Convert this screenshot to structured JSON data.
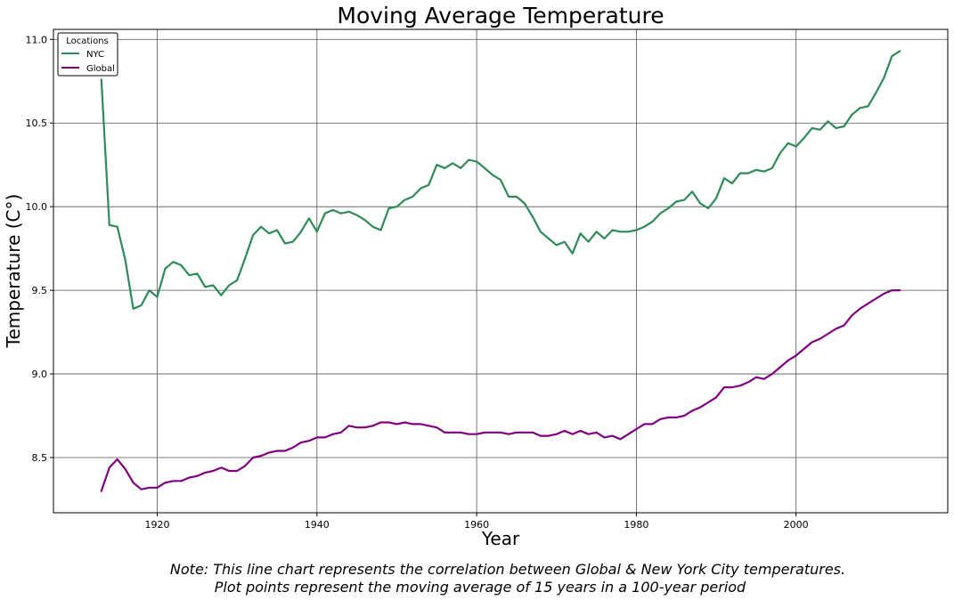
{
  "chart_data": {
    "type": "line",
    "title": "Moving Average Temperature",
    "xlabel": "Year",
    "ylabel": "Temperature (C°)",
    "xlim": [
      1907,
      2019
    ],
    "ylim": [
      8.17,
      11.06
    ],
    "xticks": [
      1920,
      1940,
      1960,
      1980,
      2000
    ],
    "yticks": [
      8.5,
      9.0,
      9.5,
      10.0,
      10.5,
      11.0
    ],
    "grid": true,
    "legend": {
      "title": "Locations",
      "placement": "top-left"
    },
    "x": [
      1913,
      1914,
      1915,
      1916,
      1917,
      1918,
      1919,
      1920,
      1921,
      1922,
      1923,
      1924,
      1925,
      1926,
      1927,
      1928,
      1929,
      1930,
      1931,
      1932,
      1933,
      1934,
      1935,
      1936,
      1937,
      1938,
      1939,
      1940,
      1941,
      1942,
      1943,
      1944,
      1945,
      1946,
      1947,
      1948,
      1949,
      1950,
      1951,
      1952,
      1953,
      1954,
      1955,
      1956,
      1957,
      1958,
      1959,
      1960,
      1961,
      1962,
      1963,
      1964,
      1965,
      1966,
      1967,
      1968,
      1969,
      1970,
      1971,
      1972,
      1973,
      1974,
      1975,
      1976,
      1977,
      1978,
      1979,
      1980,
      1981,
      1982,
      1983,
      1984,
      1985,
      1986,
      1987,
      1988,
      1989,
      1990,
      1991,
      1992,
      1993,
      1994,
      1995,
      1996,
      1997,
      1998,
      1999,
      2000,
      2001,
      2002,
      2003,
      2004,
      2005,
      2006,
      2007,
      2008,
      2009,
      2010,
      2011,
      2012,
      2013
    ],
    "series": [
      {
        "name": "NYC",
        "color": "#2e8b57",
        "values": [
          10.76,
          9.89,
          9.88,
          9.68,
          9.39,
          9.41,
          9.5,
          9.46,
          9.63,
          9.67,
          9.65,
          9.59,
          9.6,
          9.52,
          9.53,
          9.47,
          9.53,
          9.56,
          9.69,
          9.83,
          9.88,
          9.84,
          9.86,
          9.78,
          9.79,
          9.85,
          9.93,
          9.85,
          9.96,
          9.98,
          9.96,
          9.97,
          9.95,
          9.92,
          9.88,
          9.86,
          9.99,
          10.0,
          10.04,
          10.06,
          10.11,
          10.13,
          10.25,
          10.23,
          10.26,
          10.23,
          10.28,
          10.27,
          10.23,
          10.19,
          10.16,
          10.06,
          10.06,
          10.02,
          9.94,
          9.85,
          9.81,
          9.77,
          9.79,
          9.72,
          9.84,
          9.79,
          9.85,
          9.81,
          9.86,
          9.85,
          9.85,
          9.86,
          9.88,
          9.91,
          9.96,
          9.99,
          10.03,
          10.04,
          10.09,
          10.02,
          9.99,
          10.05,
          10.17,
          10.14,
          10.2,
          10.2,
          10.22,
          10.21,
          10.23,
          10.32,
          10.38,
          10.36,
          10.41,
          10.47,
          10.46,
          10.51,
          10.47,
          10.48,
          10.55,
          10.59,
          10.6,
          10.68,
          10.77,
          10.9,
          10.93
        ]
      },
      {
        "name": "Global",
        "color": "#800080",
        "values": [
          8.3,
          8.44,
          8.49,
          8.43,
          8.35,
          8.31,
          8.32,
          8.32,
          8.35,
          8.36,
          8.36,
          8.38,
          8.39,
          8.41,
          8.42,
          8.44,
          8.42,
          8.42,
          8.45,
          8.5,
          8.51,
          8.53,
          8.54,
          8.54,
          8.56,
          8.59,
          8.6,
          8.62,
          8.62,
          8.64,
          8.65,
          8.69,
          8.68,
          8.68,
          8.69,
          8.71,
          8.71,
          8.7,
          8.71,
          8.7,
          8.7,
          8.69,
          8.68,
          8.65,
          8.65,
          8.65,
          8.64,
          8.64,
          8.65,
          8.65,
          8.65,
          8.64,
          8.65,
          8.65,
          8.65,
          8.63,
          8.63,
          8.64,
          8.66,
          8.64,
          8.66,
          8.64,
          8.65,
          8.62,
          8.63,
          8.61,
          8.64,
          8.67,
          8.7,
          8.7,
          8.73,
          8.74,
          8.74,
          8.75,
          8.78,
          8.8,
          8.83,
          8.86,
          8.92,
          8.92,
          8.93,
          8.95,
          8.98,
          8.97,
          9.0,
          9.04,
          9.08,
          9.11,
          9.15,
          9.19,
          9.21,
          9.24,
          9.27,
          9.29,
          9.35,
          9.39,
          9.42,
          9.45,
          9.48,
          9.5,
          9.5
        ]
      }
    ]
  },
  "note": {
    "line1": "Note: This line chart represents the correlation between Global & New York City temperatures.",
    "line2": "Plot points represent the moving average of 15 years in a 100-year period"
  }
}
